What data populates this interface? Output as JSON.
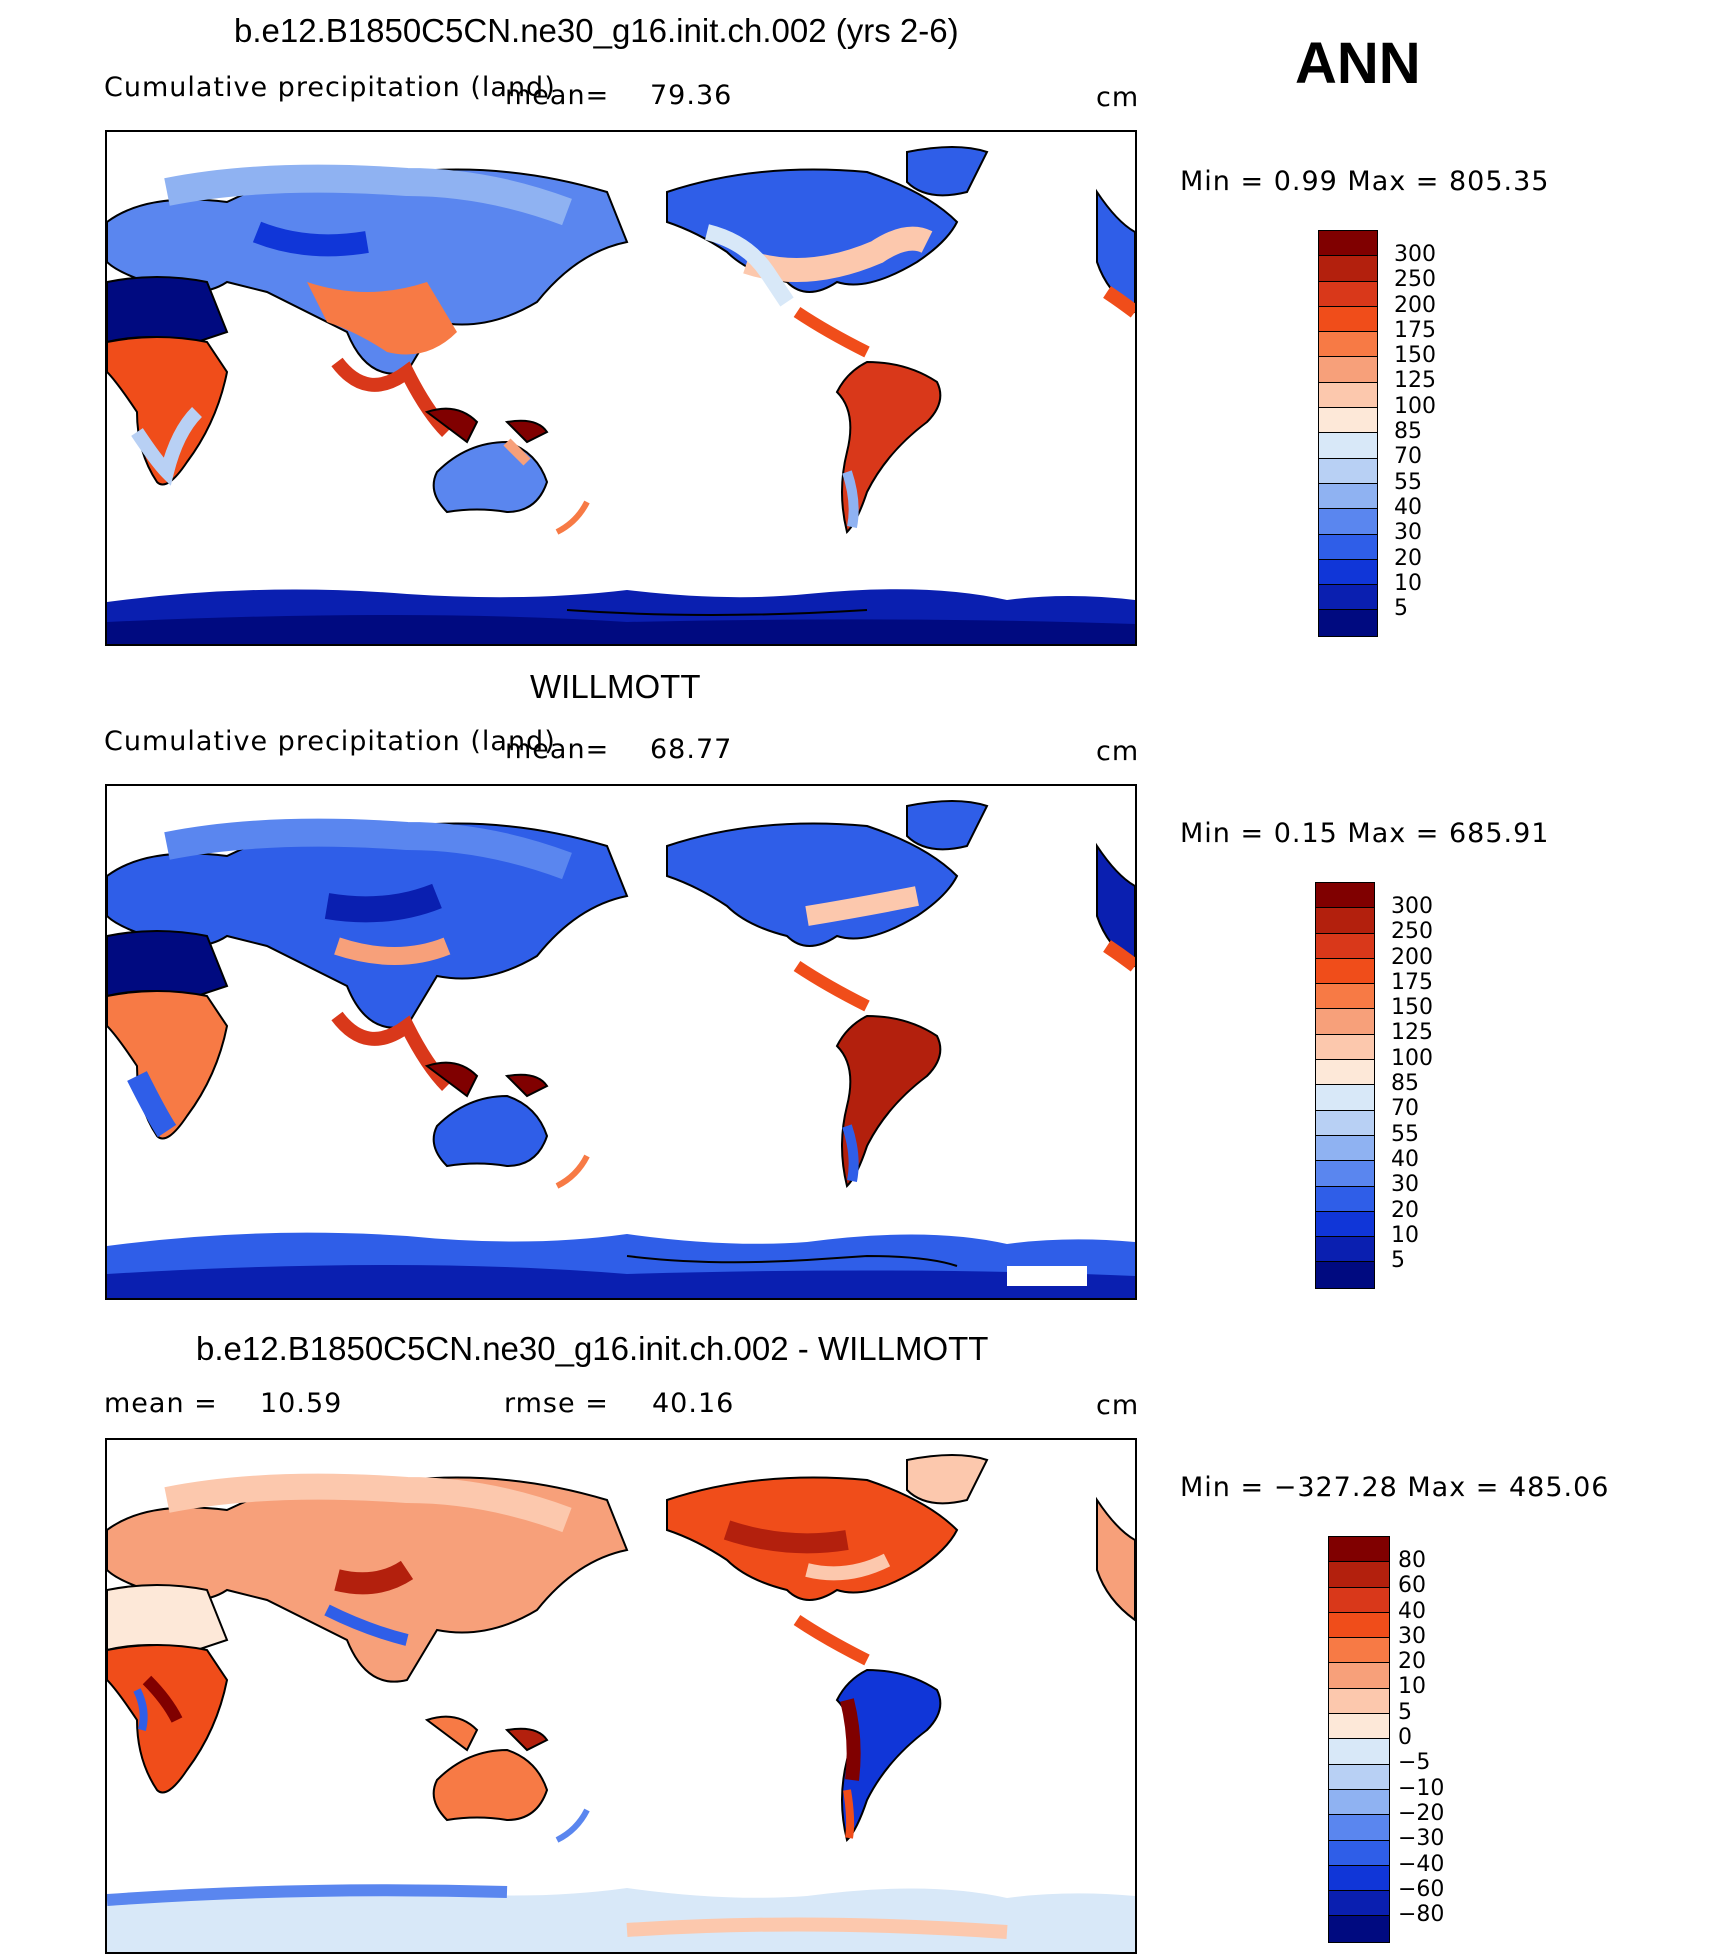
{
  "season": "ANN",
  "units": "cm",
  "panels": [
    {
      "id": "model",
      "title": "b.e12.B1850C5CN.ne30_g16.init.ch.002 (yrs 2-6)",
      "subtitle": "Cumulative precipitation (land)",
      "stat1_label": "mean=",
      "stat1_value": "79.36",
      "minmax": "Min =    0.99  Max  =  805.35",
      "min": 0.99,
      "max": 805.35
    },
    {
      "id": "obs",
      "title": "WILLMOTT",
      "subtitle": "Cumulative precipitation (land)",
      "stat1_label": "mean=",
      "stat1_value": "68.77",
      "minmax": "Min =    0.15  Max  =  685.91",
      "min": 0.15,
      "max": 685.91
    },
    {
      "id": "diff",
      "title": "b.e12.B1850C5CN.ne30_g16.init.ch.002 - WILLMOTT",
      "stat1_label": "mean =",
      "stat1_value": "10.59",
      "stat2_label": "rmse =",
      "stat2_value": "40.16",
      "minmax": "Min = −327.28  Max  =  485.06",
      "min": -327.28,
      "max": 485.06
    }
  ],
  "colorbars": {
    "precip": {
      "labels": [
        "300",
        "250",
        "200",
        "175",
        "150",
        "125",
        "100",
        "85",
        "70",
        "55",
        "40",
        "30",
        "20",
        "10",
        "5"
      ],
      "colors": [
        "#800000",
        "#b3200d",
        "#d9381a",
        "#f04d1a",
        "#f77a45",
        "#f7a07a",
        "#fcc8ad",
        "#fde8d8",
        "#d8e8f8",
        "#b8d0f4",
        "#8fb2f2",
        "#5a86ef",
        "#2f5ee8",
        "#1036d8",
        "#0a1fb0",
        "#000a80"
      ]
    },
    "diff": {
      "labels": [
        "80",
        "60",
        "40",
        "30",
        "20",
        "10",
        "5",
        "0",
        "−5",
        "−10",
        "−20",
        "−30",
        "−40",
        "−60",
        "−80"
      ],
      "colors": [
        "#800000",
        "#b3200d",
        "#d9381a",
        "#f04d1a",
        "#f77a45",
        "#f7a07a",
        "#fcc8ad",
        "#fde8d8",
        "#d8e8f8",
        "#b8d0f4",
        "#8fb2f2",
        "#5a86ef",
        "#2f5ee8",
        "#1036d8",
        "#0a1fb0",
        "#000a80"
      ]
    }
  }
}
